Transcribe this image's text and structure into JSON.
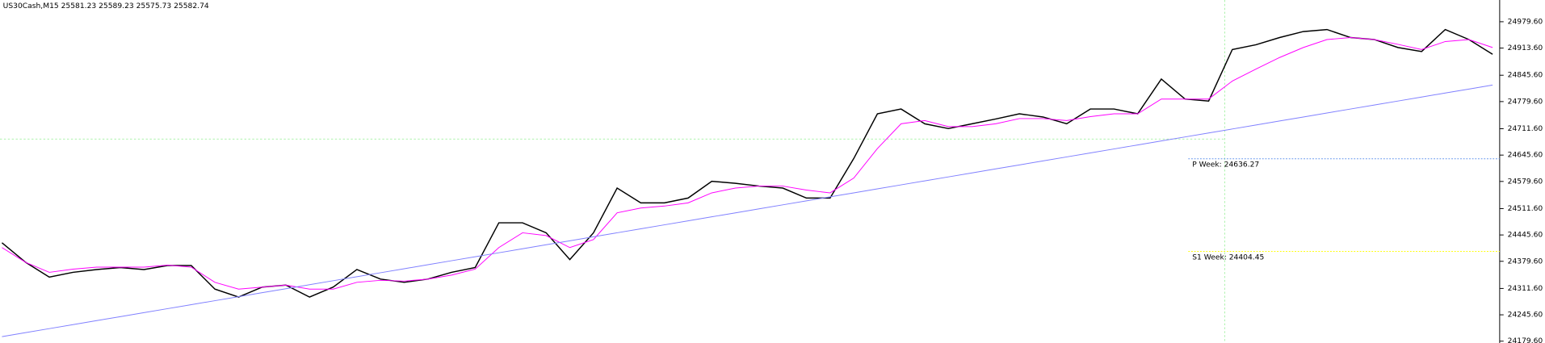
{
  "chart_data": {
    "type": "line",
    "title": "US30Cash,M15  25581.23 25589.23 25575.73 25582.74",
    "x": [
      0,
      1,
      2,
      3,
      4,
      5,
      6,
      7,
      8,
      9,
      10,
      11,
      12,
      13,
      14,
      15,
      16,
      17,
      18,
      19,
      20,
      21,
      22,
      23,
      24,
      25,
      26,
      27,
      28,
      29,
      30,
      31,
      32,
      33,
      34,
      35,
      36,
      37,
      38,
      39,
      40,
      41,
      42,
      43,
      44,
      45,
      46,
      47,
      48,
      49,
      50,
      51,
      52,
      53,
      54,
      55,
      56,
      57,
      58,
      59,
      60,
      61,
      62,
      63
    ],
    "xlim": [
      0,
      63.3
    ],
    "ylim": [
      24175,
      25034
    ],
    "yticks": [
      {
        "value": 24979.6,
        "label": "24979.60"
      },
      {
        "value": 24913.6,
        "label": "24913.60"
      },
      {
        "value": 24845.6,
        "label": "24845.60"
      },
      {
        "value": 24779.6,
        "label": "24779.60"
      },
      {
        "value": 24711.6,
        "label": "24711.60"
      },
      {
        "value": 24645.6,
        "label": "24645.60"
      },
      {
        "value": 24579.6,
        "label": "24579.60"
      },
      {
        "value": 24511.6,
        "label": "24511.60"
      },
      {
        "value": 24445.6,
        "label": "24445.60"
      },
      {
        "value": 24379.6,
        "label": "24379.60"
      },
      {
        "value": 24311.6,
        "label": "24311.60"
      },
      {
        "value": 24245.6,
        "label": "24245.60"
      },
      {
        "value": 24179.6,
        "label": "24179.60"
      }
    ],
    "series": [
      {
        "color": "#000000",
        "values": [
          24426,
          24377,
          24340,
          24352,
          24359,
          24364,
          24359,
          24369,
          24369,
          24310,
          24290,
          24315,
          24320,
          24290,
          24315,
          24359,
          24335,
          24327,
          24335,
          24352,
          24364,
          24476,
          24476,
          24451,
          24384,
          24451,
          24563,
          24526,
          24526,
          24538,
          24580,
          24575,
          24568,
          24563,
          24538,
          24538,
          24637,
          24749,
          24761,
          24724,
          24712,
          24724,
          24736,
          24749,
          24741,
          24724,
          24761,
          24761,
          24749,
          24836,
          24786,
          24781,
          24910,
          24922,
          24940,
          24955,
          24960,
          24940,
          24935,
          24915,
          24905,
          24960,
          24935,
          24898
        ]
      },
      {
        "color": "#ff00ff",
        "values": [
          24414,
          24377,
          24352,
          24360,
          24365,
          24365,
          24365,
          24370,
          24365,
          24327,
          24310,
          24315,
          24320,
          24310,
          24310,
          24327,
          24332,
          24330,
          24335,
          24345,
          24360,
          24414,
          24451,
          24444,
          24414,
          24434,
          24501,
          24513,
          24518,
          24526,
          24551,
          24563,
          24568,
          24568,
          24558,
          24551,
          24588,
          24662,
          24724,
          24732,
          24717,
          24717,
          24724,
          24737,
          24737,
          24732,
          24742,
          24749,
          24749,
          24786,
          24786,
          24786,
          24831,
          24861,
          24890,
          24915,
          24935,
          24940,
          24935,
          24923,
          24910,
          24930,
          24935,
          24915
        ]
      },
      {
        "color": "#8080ff",
        "values": [
          24191,
          24201,
          24211,
          24221,
          24231,
          24241,
          24251,
          24261,
          24271,
          24281,
          24291,
          24301,
          24311,
          24321,
          24331,
          24341,
          24351,
          24361,
          24371,
          24381,
          24391,
          24401,
          24411,
          24421,
          24431,
          24441,
          24451,
          24461,
          24471,
          24481,
          24491,
          24501,
          24511,
          24521,
          24531,
          24541,
          24551,
          24561,
          24571,
          24581,
          24591,
          24601,
          24611,
          24621,
          24631,
          24641,
          24651,
          24661,
          24671,
          24681,
          24691,
          24701,
          24711,
          24721,
          24731,
          24741,
          24751,
          24761,
          24771,
          24781,
          24791,
          24801,
          24811,
          24821
        ]
      }
    ],
    "levels": [
      {
        "label": "P Week: 24636.27",
        "value": 24636.27,
        "color": "#6495ed"
      },
      {
        "label": "S1 Week: 24404.45",
        "value": 24404.45,
        "color": "#ffff00"
      }
    ]
  }
}
